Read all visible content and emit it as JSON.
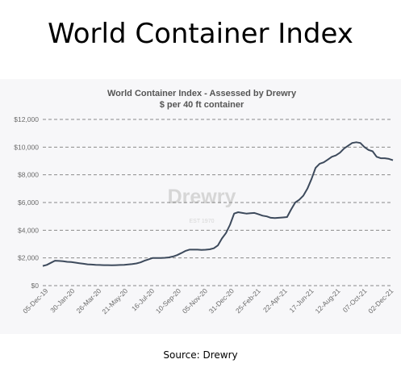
{
  "header": {
    "title": "World Container Index"
  },
  "footer": {
    "source": "Source: Drewry"
  },
  "watermark": {
    "text": "Drewry",
    "sub": "EST 1970"
  },
  "colors": {
    "line": "#3d4a5c",
    "grid": "#8a8a8a",
    "tick_text": "#6b6b6b",
    "chart_title": "#555555",
    "frame_bg": "#f7f7f9"
  },
  "chart_data": {
    "type": "line",
    "title": "World Container Index - Assessed by Drewry",
    "subtitle": "$ per 40 ft container",
    "xlabel": "",
    "ylabel": "",
    "ylim": [
      0,
      12000
    ],
    "yticks": [
      0,
      2000,
      4000,
      6000,
      8000,
      10000,
      12000
    ],
    "ytick_labels": [
      "$0",
      "$2,000",
      "$4,000",
      "$6,000",
      "$8,000",
      "$10,000",
      "$12,000"
    ],
    "xtick_labels": [
      "05-Dec-19",
      "30-Jan-20",
      "26-Mar-20",
      "21-May-20",
      "16-Jul-20",
      "10-Sep-20",
      "05-Nov-20",
      "31-Dec-20",
      "25-Feb-21",
      "22-Apr-21",
      "17-Jun-21",
      "12-Aug-21",
      "07-Oct-21",
      "02-Dec-21"
    ],
    "grid": true,
    "legend": "none",
    "series": [
      {
        "values": [
          1420,
          1500,
          1650,
          1800,
          1780,
          1760,
          1720,
          1700,
          1660,
          1620,
          1580,
          1540,
          1520,
          1500,
          1490,
          1480,
          1480,
          1470,
          1480,
          1490,
          1500,
          1530,
          1560,
          1600,
          1680,
          1800,
          1900,
          2000,
          2000,
          1990,
          2010,
          2040,
          2100,
          2200,
          2350,
          2500,
          2600,
          2600,
          2600,
          2580,
          2590,
          2620,
          2700,
          2900,
          3400,
          3800,
          4400,
          5200,
          5300,
          5250,
          5200,
          5230,
          5250,
          5150,
          5050,
          5000,
          4900,
          4880,
          4900,
          4920,
          4950,
          5500,
          6000,
          6200,
          6500,
          7000,
          7700,
          8500,
          8800,
          8900,
          9100,
          9300,
          9400,
          9600,
          9900,
          10100,
          10300,
          10350,
          10300,
          10000,
          9800,
          9700,
          9300,
          9200,
          9200,
          9150,
          9050
        ]
      }
    ]
  }
}
